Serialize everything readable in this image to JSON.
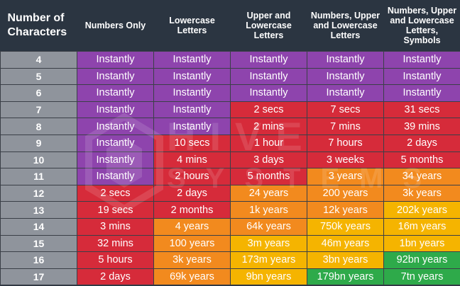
{
  "headers": [
    "Number of Characters",
    "Numbers Only",
    "Lowercase Letters",
    "Upper and Lowercase Letters",
    "Numbers, Upper and Lowercase Letters",
    "Numbers, Upper and Lowercase Letters, Symbols"
  ],
  "watermark": {
    "line1": "HIVE",
    "line2": "SYSTEMS"
  },
  "colors": {
    "purple": "#8e44ad",
    "red": "#d62b3a",
    "orange": "#f28a1e",
    "yellow": "#f5b400",
    "green": "#2eaa4a",
    "number_column": "#8f949c",
    "header_background": "#2b3541"
  },
  "rows": [
    {
      "n": "4",
      "cells": [
        [
          "Instantly",
          "purple"
        ],
        [
          "Instantly",
          "purple"
        ],
        [
          "Instantly",
          "purple"
        ],
        [
          "Instantly",
          "purple"
        ],
        [
          "Instantly",
          "purple"
        ]
      ]
    },
    {
      "n": "5",
      "cells": [
        [
          "Instantly",
          "purple"
        ],
        [
          "Instantly",
          "purple"
        ],
        [
          "Instantly",
          "purple"
        ],
        [
          "Instantly",
          "purple"
        ],
        [
          "Instantly",
          "purple"
        ]
      ]
    },
    {
      "n": "6",
      "cells": [
        [
          "Instantly",
          "purple"
        ],
        [
          "Instantly",
          "purple"
        ],
        [
          "Instantly",
          "purple"
        ],
        [
          "Instantly",
          "purple"
        ],
        [
          "Instantly",
          "purple"
        ]
      ]
    },
    {
      "n": "7",
      "cells": [
        [
          "Instantly",
          "purple"
        ],
        [
          "Instantly",
          "purple"
        ],
        [
          "2 secs",
          "red"
        ],
        [
          "7 secs",
          "red"
        ],
        [
          "31 secs",
          "red"
        ]
      ]
    },
    {
      "n": "8",
      "cells": [
        [
          "Instantly",
          "purple"
        ],
        [
          "Instantly",
          "purple"
        ],
        [
          "2 mins",
          "red"
        ],
        [
          "7 mins",
          "red"
        ],
        [
          "39 mins",
          "red"
        ]
      ]
    },
    {
      "n": "9",
      "cells": [
        [
          "Instantly",
          "purple"
        ],
        [
          "10 secs",
          "red"
        ],
        [
          "1 hour",
          "red"
        ],
        [
          "7 hours",
          "red"
        ],
        [
          "2 days",
          "red"
        ]
      ]
    },
    {
      "n": "10",
      "cells": [
        [
          "Instantly",
          "purple"
        ],
        [
          "4 mins",
          "red"
        ],
        [
          "3 days",
          "red"
        ],
        [
          "3 weeks",
          "red"
        ],
        [
          "5 months",
          "red"
        ]
      ]
    },
    {
      "n": "11",
      "cells": [
        [
          "Instantly",
          "purple"
        ],
        [
          "2 hours",
          "red"
        ],
        [
          "5 months",
          "red"
        ],
        [
          "3 years",
          "orange"
        ],
        [
          "34 years",
          "orange"
        ]
      ]
    },
    {
      "n": "12",
      "cells": [
        [
          "2 secs",
          "red"
        ],
        [
          "2 days",
          "red"
        ],
        [
          "24 years",
          "orange"
        ],
        [
          "200 years",
          "orange"
        ],
        [
          "3k years",
          "orange"
        ]
      ]
    },
    {
      "n": "13",
      "cells": [
        [
          "19 secs",
          "red"
        ],
        [
          "2 months",
          "red"
        ],
        [
          "1k years",
          "orange"
        ],
        [
          "12k years",
          "orange"
        ],
        [
          "202k years",
          "yellow"
        ]
      ]
    },
    {
      "n": "14",
      "cells": [
        [
          "3 mins",
          "red"
        ],
        [
          "4 years",
          "orange"
        ],
        [
          "64k years",
          "orange"
        ],
        [
          "750k years",
          "yellow"
        ],
        [
          "16m years",
          "yellow"
        ]
      ]
    },
    {
      "n": "15",
      "cells": [
        [
          "32 mins",
          "red"
        ],
        [
          "100 years",
          "orange"
        ],
        [
          "3m years",
          "yellow"
        ],
        [
          "46m years",
          "yellow"
        ],
        [
          "1bn years",
          "yellow"
        ]
      ]
    },
    {
      "n": "16",
      "cells": [
        [
          "5 hours",
          "red"
        ],
        [
          "3k years",
          "orange"
        ],
        [
          "173m years",
          "yellow"
        ],
        [
          "3bn years",
          "yellow"
        ],
        [
          "92bn years",
          "green"
        ]
      ]
    },
    {
      "n": "17",
      "cells": [
        [
          "2 days",
          "red"
        ],
        [
          "69k years",
          "orange"
        ],
        [
          "9bn years",
          "yellow"
        ],
        [
          "179bn years",
          "green"
        ],
        [
          "7tn years",
          "green"
        ]
      ]
    }
  ]
}
